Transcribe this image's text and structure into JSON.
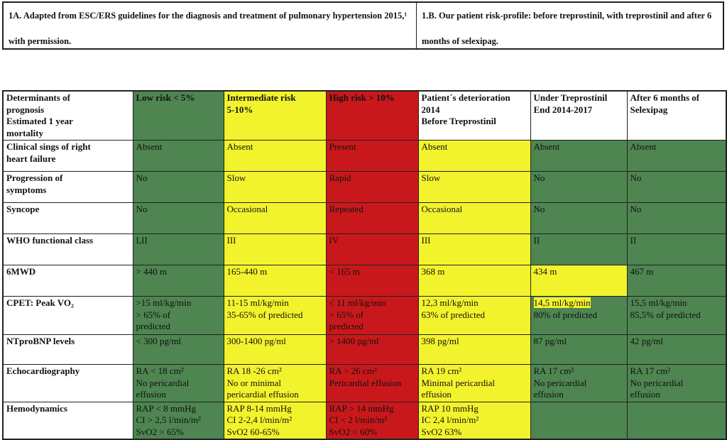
{
  "captions": {
    "a": "1A. Adapted from ESC/ERS guidelines for the diagnosis and treatment of pulmonary hypertension 2015,¹ with permission.",
    "b": "1.B. Our patient risk-profile: before treprostinil, with treprostinil and after 6 months of selexipag."
  },
  "colors": {
    "green": "#4e8551",
    "yellow": "#f3f32d",
    "red": "#c9181b"
  },
  "header": [
    {
      "text": "Determinants of\nprognosis\nEstimated 1 year\nmortality",
      "color": "white"
    },
    {
      "text": "Low risk < 5%",
      "color": "green"
    },
    {
      "text": "Intermediate risk\n5-10%",
      "color": "yellow"
    },
    {
      "text": "High risk > 10%",
      "color": "red"
    },
    {
      "text": "Patient´s deterioration\n2014\nBefore Treprostinil",
      "color": "white"
    },
    {
      "text": "Under Treprostinil\nEnd 2014-2017",
      "color": "white"
    },
    {
      "text": "After 6 months of\nSelexipag",
      "color": "white"
    }
  ],
  "rows": [
    {
      "label": "Clinical sings of right\nheart failure",
      "cells": [
        {
          "text": "Absent",
          "color": "green"
        },
        {
          "text": "Absent",
          "color": "yellow"
        },
        {
          "text": "Present",
          "color": "red"
        },
        {
          "text": "Absent",
          "color": "yellow"
        },
        {
          "text": "Absent",
          "color": "green"
        },
        {
          "text": "Absent",
          "color": "green"
        }
      ]
    },
    {
      "label": "Progression of\nsymptoms",
      "cells": [
        {
          "text": "No",
          "color": "green"
        },
        {
          "text": "Slow",
          "color": "yellow"
        },
        {
          "text": "Rapid",
          "color": "red"
        },
        {
          "text": "Slow",
          "color": "yellow"
        },
        {
          "text": "No",
          "color": "green"
        },
        {
          "text": "No",
          "color": "green"
        }
      ]
    },
    {
      "label": "Syncope",
      "cells": [
        {
          "text": "No",
          "color": "green"
        },
        {
          "text": "Occasional",
          "color": "yellow"
        },
        {
          "text": "Repeated",
          "color": "red"
        },
        {
          "text": "Occasional",
          "color": "yellow"
        },
        {
          "text": "No",
          "color": "green"
        },
        {
          "text": "No",
          "color": "green"
        }
      ]
    },
    {
      "label": "WHO functional class",
      "cells": [
        {
          "text": "I,II",
          "color": "green"
        },
        {
          "text": "III",
          "color": "yellow"
        },
        {
          "text": "IV",
          "color": "red"
        },
        {
          "text": "III",
          "color": "yellow"
        },
        {
          "text": "II",
          "color": "green"
        },
        {
          "text": "II",
          "color": "green"
        }
      ]
    },
    {
      "label": "6MWD",
      "cells": [
        {
          "text": "> 440 m",
          "color": "green"
        },
        {
          "text": "165-440 m",
          "color": "yellow"
        },
        {
          "text": "< 165 m",
          "color": "red"
        },
        {
          "text": "368 m",
          "color": "yellow"
        },
        {
          "text": "434 m",
          "color": "yellow"
        },
        {
          "text": "467 m",
          "color": "green"
        }
      ]
    },
    {
      "label": "CPET: Peak VO₂",
      "cells": [
        {
          "text": ">15 ml/kg/min\n> 65% of\npredicted",
          "color": "green"
        },
        {
          "text": "11-15 ml/kg/min\n35-65% of predicted",
          "color": "yellow"
        },
        {
          "text": "< 11 ml/kg/min\n> 65% of\npredicted",
          "color": "red"
        },
        {
          "text": "12,3 ml/kg/min\n63% of predicted",
          "color": "yellow"
        },
        {
          "text": "80% of predicted",
          "highlight": "14,5 ml/kg/min",
          "color": "green"
        },
        {
          "text": "15,5 ml/kg/min\n85,5% of predicted",
          "color": "green"
        }
      ]
    },
    {
      "label": "NTproBNP  levels",
      "cells": [
        {
          "text": "< 300 pg/ml",
          "color": "green"
        },
        {
          "text": "300-1400 pg/ml",
          "color": "yellow"
        },
        {
          "text": "> 1400 pg/ml",
          "color": "red"
        },
        {
          "text": "398 pg/ml",
          "color": "yellow"
        },
        {
          "text": "87 pg/ml",
          "color": "green"
        },
        {
          "text": "42 pg/ml",
          "color": "green"
        }
      ]
    },
    {
      "label": "Echocardiography",
      "cells": [
        {
          "text": "RA < 18 cm²\nNo pericardial\neffusion",
          "color": "green"
        },
        {
          "text": "RA 18 -26 cm²\nNo or minimal\npericardial effusion",
          "color": "yellow"
        },
        {
          "text": "RA > 26 cm²\nPericardial effusion",
          "color": "red"
        },
        {
          "text": "RA 19 cm²\nMinimal pericardial\neffusion",
          "color": "yellow"
        },
        {
          "text": "RA 17 cm²\nNo pericardial\neffusion",
          "color": "green"
        },
        {
          "text": "RA 17 cm²\nNo pericardial\neffusion",
          "color": "green"
        }
      ]
    },
    {
      "label": "Hemodynamics",
      "cells": [
        {
          "text": "RAP < 8 mmHg\nCI > 2,5 l/min/m²\nSvO2 > 65%",
          "color": "green"
        },
        {
          "text": "RAP 8-14 mmHg\nCI  2-2,4 l/min/m²\nSvO2 60-65%",
          "color": "yellow"
        },
        {
          "text": "RAP > 14 mmHg\nCI < 2 l/min/m²\nSvO2 < 60%",
          "color": "red"
        },
        {
          "text": "RAP 10 mmHg\nIC 2,4 l/min/m²\nSvO2 63%",
          "color": "yellow"
        },
        {
          "text": "",
          "color": "green"
        },
        {
          "text": "",
          "color": "green"
        }
      ]
    }
  ]
}
